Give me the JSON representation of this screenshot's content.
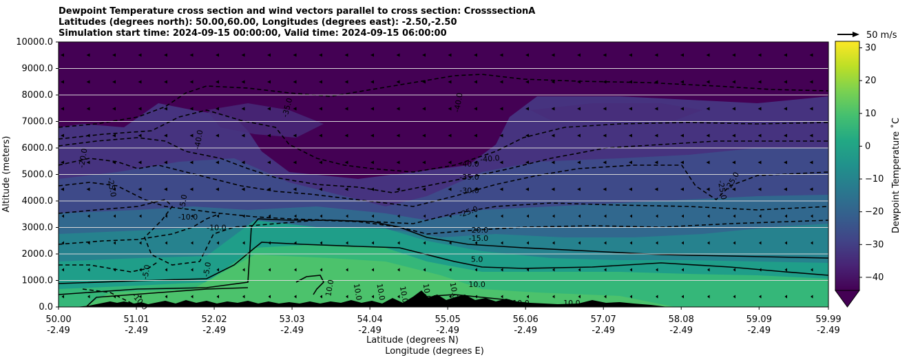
{
  "chart_data": {
    "type": "heatmap",
    "title_lines": [
      "Dewpoint Temperature cross section and wind vectors parallel to cross section: CrosssectionA",
      "Latitudes (degrees north): 50.00,60.00, Longitudes (degrees east): -2.50,-2.50",
      "Simulation start time: 2024-09-15 00:00:00, Valid time: 2024-09-15 06:00:00"
    ],
    "xlabel_line1": "Latitude (degrees N)",
    "xlabel_line2": "Longitude (degrees E)",
    "ylabel": "Altitude (meters)",
    "x_ticks": [
      {
        "lat": "50.00",
        "lon": "-2.49",
        "value": 50.0
      },
      {
        "lat": "51.01",
        "lon": "-2.49",
        "value": 51.01
      },
      {
        "lat": "52.02",
        "lon": "-2.49",
        "value": 52.02
      },
      {
        "lat": "53.03",
        "lon": "-2.49",
        "value": 53.03
      },
      {
        "lat": "54.04",
        "lon": "-2.49",
        "value": 54.04
      },
      {
        "lat": "55.05",
        "lon": "-2.49",
        "value": 55.05
      },
      {
        "lat": "56.06",
        "lon": "-2.49",
        "value": 56.06
      },
      {
        "lat": "57.07",
        "lon": "-2.49",
        "value": 57.07
      },
      {
        "lat": "58.08",
        "lon": "-2.49",
        "value": 58.08
      },
      {
        "lat": "59.09",
        "lon": "-2.49",
        "value": 59.09
      },
      {
        "lat": "59.99",
        "lon": "-2.49",
        "value": 59.99
      }
    ],
    "xlim": [
      50.0,
      59.99
    ],
    "y_ticks": [
      "0.0",
      "1000.0",
      "2000.0",
      "3000.0",
      "4000.0",
      "5000.0",
      "6000.0",
      "7000.0",
      "8000.0",
      "9000.0",
      "10000.0"
    ],
    "ylim": [
      0,
      10000
    ],
    "grid": "horizontal",
    "colorbar": {
      "label": "Dewpoint Temperature ˚C",
      "ticks": [
        "30",
        "20",
        "10",
        "0",
        "−10",
        "−20",
        "−30",
        "−40"
      ],
      "min": -44,
      "max": 32,
      "extend": "min",
      "colors": [
        "#440154",
        "#482475",
        "#414487",
        "#355f8d",
        "#2a788e",
        "#21918c",
        "#22a884",
        "#44bf70",
        "#7ad151",
        "#bddf26",
        "#fde725"
      ]
    },
    "quiver_key": "50 m/s",
    "contour_labels": [
      {
        "text": "-20.0",
        "lat": 50.35,
        "alt": 5600,
        "rot": -80
      },
      {
        "text": "-25.0",
        "lat": 50.66,
        "alt": 4500,
        "rot": 80
      },
      {
        "text": "-5.0",
        "lat": 51.65,
        "alt": 3950,
        "rot": -80
      },
      {
        "text": "-10.0",
        "lat": 51.68,
        "alt": 3300,
        "rot": 0
      },
      {
        "text": "-10.0",
        "lat": 52.05,
        "alt": 2900,
        "rot": 0
      },
      {
        "text": "-5.0",
        "lat": 51.17,
        "alt": 1300,
        "rot": -80
      },
      {
        "text": "-5.0",
        "lat": 51.96,
        "alt": 1400,
        "rot": -80
      },
      {
        "text": "-10.0",
        "lat": 51.03,
        "alt": 150,
        "rot": 50
      },
      {
        "text": "-35.0",
        "lat": 53.0,
        "alt": 7500,
        "rot": -75
      },
      {
        "text": "-40.0",
        "lat": 51.85,
        "alt": 6300,
        "rot": -80
      },
      {
        "text": "-40.0",
        "lat": 55.22,
        "alt": 7700,
        "rot": -80
      },
      {
        "text": "-40.0",
        "lat": 55.33,
        "alt": 5300,
        "rot": 0
      },
      {
        "text": "-40.0",
        "lat": 55.6,
        "alt": 5500,
        "rot": -5
      },
      {
        "text": "-35.0",
        "lat": 55.33,
        "alt": 4800,
        "rot": 0
      },
      {
        "text": "-30.0",
        "lat": 55.33,
        "alt": 4300,
        "rot": 0
      },
      {
        "text": "-25.0",
        "lat": 55.33,
        "alt": 3500,
        "rot": -20
      },
      {
        "text": "-20.0",
        "lat": 55.45,
        "alt": 2800,
        "rot": 0
      },
      {
        "text": "-15.0",
        "lat": 55.45,
        "alt": 2500,
        "rot": 0
      },
      {
        "text": "5.0",
        "lat": 55.43,
        "alt": 1700,
        "rot": 0
      },
      {
        "text": "10.0",
        "lat": 55.43,
        "alt": 750,
        "rot": 0
      },
      {
        "text": "10.0",
        "lat": 53.55,
        "alt": 700,
        "rot": -80
      },
      {
        "text": "10.0",
        "lat": 53.85,
        "alt": 550,
        "rot": 80
      },
      {
        "text": "10.0",
        "lat": 54.15,
        "alt": 550,
        "rot": 80
      },
      {
        "text": "10.0",
        "lat": 54.45,
        "alt": 450,
        "rot": 80
      },
      {
        "text": "10.0",
        "lat": 54.75,
        "alt": 550,
        "rot": 80
      },
      {
        "text": "10.0",
        "lat": 55.1,
        "alt": 600,
        "rot": 80
      },
      {
        "text": "10.0",
        "lat": 56.0,
        "alt": 50,
        "rot": 0
      },
      {
        "text": "10.0",
        "lat": 56.66,
        "alt": 50,
        "rot": 0
      },
      {
        "text": "-25.0",
        "lat": 58.58,
        "alt": 4400,
        "rot": 80
      },
      {
        "text": "-25.0",
        "lat": 58.77,
        "alt": 4700,
        "rot": -60
      }
    ]
  }
}
